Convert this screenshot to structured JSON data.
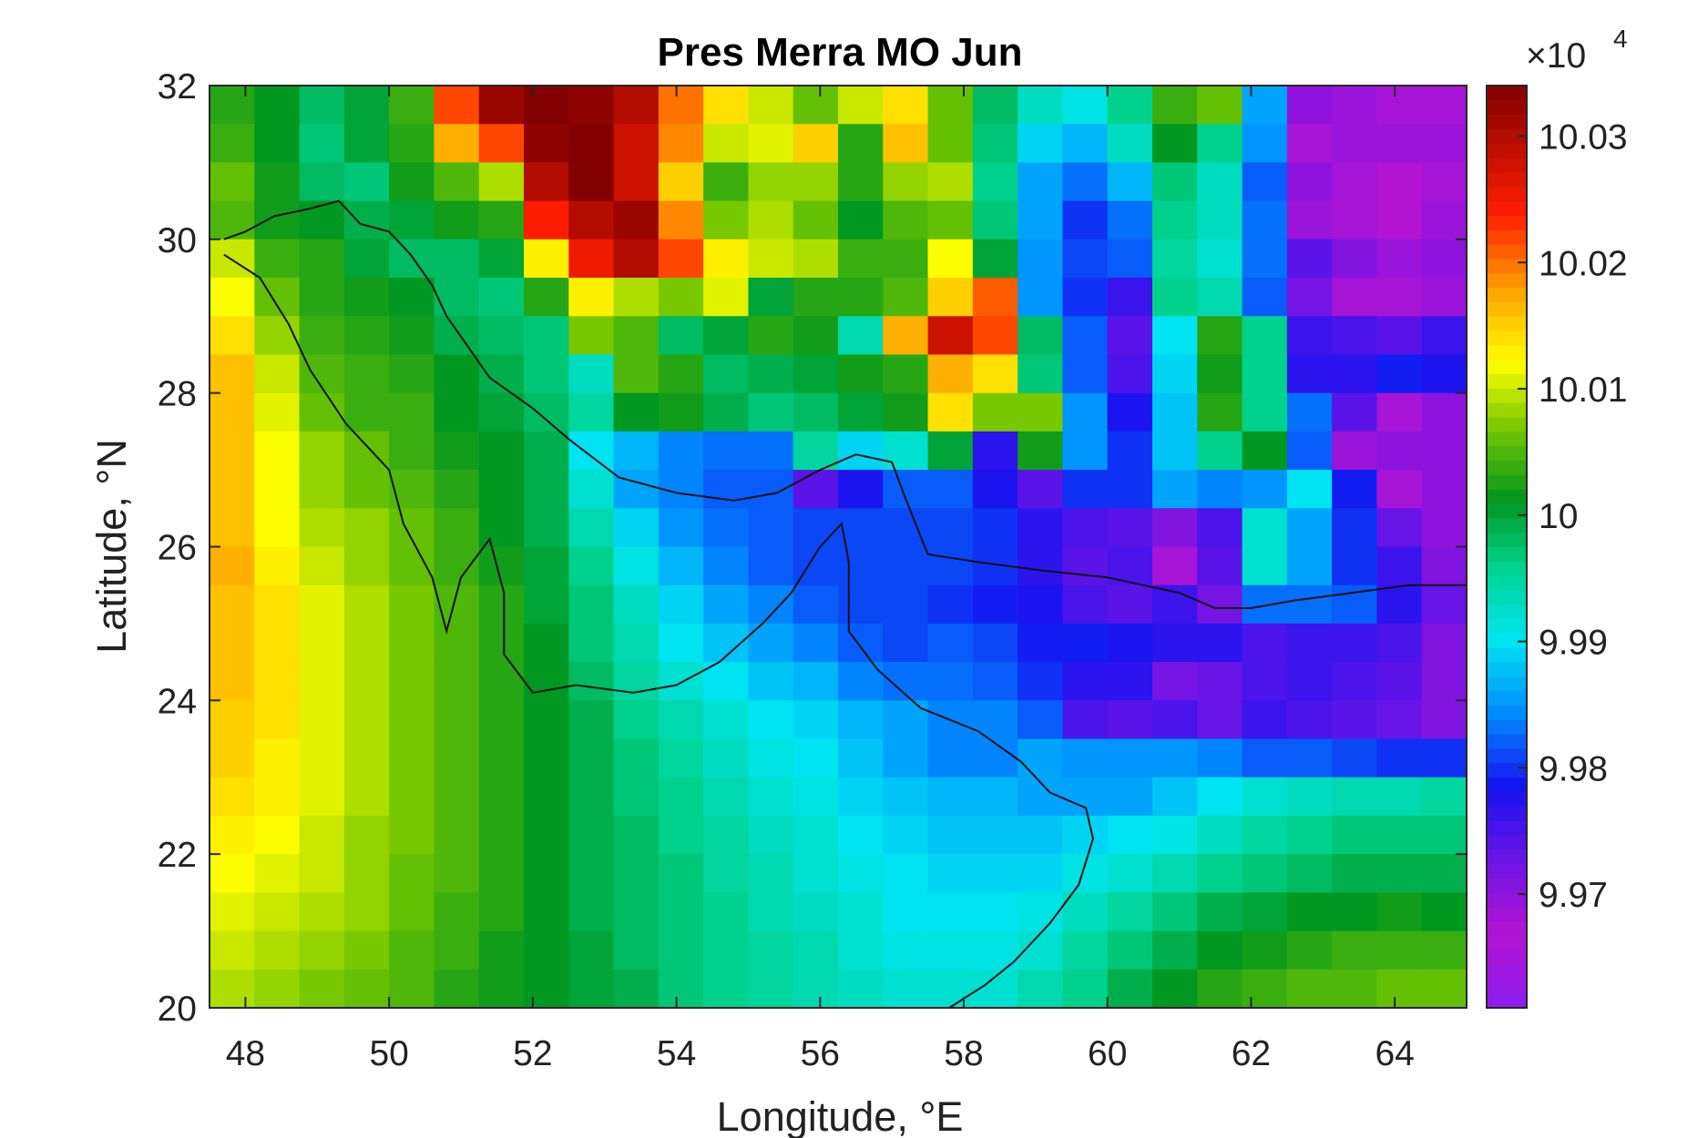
{
  "chart_data": {
    "type": "heatmap",
    "title": "Pres Merra MO Jun",
    "xlabel": "Longitude, °E",
    "ylabel": "Latitude, °N",
    "xlim": [
      47.5,
      65
    ],
    "ylim": [
      20,
      32
    ],
    "x_ticks": [
      "48",
      "50",
      "52",
      "54",
      "56",
      "58",
      "60",
      "62",
      "64"
    ],
    "y_ticks": [
      "20",
      "22",
      "24",
      "26",
      "28",
      "30",
      "32"
    ],
    "colorbar": {
      "range": [
        9.961,
        10.034
      ],
      "multiplier": "×10",
      "multiplier_exponent": "4",
      "ticks": [
        "9.97",
        "9.98",
        "9.99",
        "10",
        "10.01",
        "10.02",
        "10.03"
      ],
      "colormap": "jet-like (purple–blue–cyan–green–yellow–red–dark red)"
    },
    "grid": {
      "lon_start": 47.5,
      "lon_step": 0.625,
      "lat_start": 20,
      "lat_step": 0.5,
      "n_lon": 28,
      "n_lat": 24,
      "values_x1e4_row_order": "north to south, west to east",
      "rows": [
        [
          10.003,
          10.001,
          9.998,
          10.0,
          10.004,
          10.022,
          10.032,
          10.034,
          10.033,
          10.03,
          10.02,
          10.014,
          10.01,
          10.006,
          10.01,
          10.014,
          10.006,
          9.998,
          9.993,
          9.991,
          9.996,
          10.004,
          10.006,
          9.986,
          9.97,
          9.969,
          9.968,
          9.968
        ],
        [
          10.004,
          10.001,
          9.997,
          10.0,
          10.003,
          10.017,
          10.022,
          10.033,
          10.034,
          10.028,
          10.019,
          10.01,
          10.011,
          10.015,
          10.003,
          10.016,
          10.006,
          9.997,
          9.989,
          9.987,
          9.993,
          10.001,
          9.996,
          9.985,
          9.968,
          9.969,
          9.969,
          9.969
        ],
        [
          10.006,
          10.002,
          9.998,
          9.997,
          10.002,
          10.005,
          10.009,
          10.03,
          10.034,
          10.028,
          10.015,
          10.004,
          10.008,
          10.008,
          10.003,
          10.008,
          10.009,
          9.996,
          9.986,
          9.983,
          9.987,
          9.997,
          9.993,
          9.982,
          9.97,
          9.968,
          9.967,
          9.968
        ],
        [
          10.005,
          10.002,
          10.001,
          9.999,
          10.0,
          10.002,
          10.003,
          10.024,
          10.03,
          10.032,
          10.019,
          10.007,
          10.009,
          10.006,
          10.001,
          10.005,
          10.006,
          9.997,
          9.986,
          9.98,
          9.983,
          9.996,
          9.993,
          9.983,
          9.969,
          9.968,
          9.967,
          9.969
        ],
        [
          10.01,
          10.004,
          10.003,
          10.0,
          9.998,
          9.998,
          10.0,
          10.013,
          10.025,
          10.03,
          10.022,
          10.013,
          10.01,
          10.009,
          10.004,
          10.004,
          10.012,
          10.0,
          9.985,
          9.981,
          9.982,
          9.995,
          9.992,
          9.983,
          9.974,
          9.971,
          9.969,
          9.97
        ],
        [
          10.012,
          10.006,
          10.003,
          10.002,
          10.001,
          9.998,
          9.997,
          10.003,
          10.013,
          10.009,
          10.007,
          10.011,
          10.0,
          10.003,
          10.003,
          10.005,
          10.015,
          10.021,
          9.985,
          9.98,
          9.976,
          9.996,
          9.994,
          9.982,
          9.972,
          9.968,
          9.968,
          9.969
        ],
        [
          10.014,
          10.008,
          10.004,
          10.003,
          10.002,
          9.999,
          9.998,
          9.997,
          10.007,
          10.005,
          9.998,
          10.0,
          10.003,
          10.002,
          9.994,
          10.017,
          10.028,
          10.022,
          9.998,
          9.982,
          9.974,
          9.99,
          10.003,
          9.996,
          9.976,
          9.975,
          9.974,
          9.976
        ],
        [
          10.016,
          10.01,
          10.005,
          10.004,
          10.003,
          10.001,
          9.999,
          9.997,
          9.993,
          10.005,
          10.003,
          9.998,
          9.999,
          10.0,
          10.002,
          10.003,
          10.017,
          10.014,
          9.997,
          9.982,
          9.975,
          9.989,
          10.002,
          9.996,
          9.977,
          9.977,
          9.979,
          9.978
        ],
        [
          10.016,
          10.011,
          10.006,
          10.004,
          10.004,
          10.001,
          10.0,
          9.998,
          9.995,
          10.001,
          10.002,
          9.999,
          9.997,
          9.998,
          10.0,
          10.002,
          10.014,
          10.007,
          10.007,
          9.985,
          9.978,
          9.988,
          10.003,
          9.996,
          9.983,
          9.974,
          9.968,
          9.97
        ],
        [
          10.016,
          10.012,
          10.008,
          10.006,
          10.004,
          10.002,
          10.001,
          9.999,
          9.99,
          9.987,
          9.984,
          9.983,
          9.983,
          9.995,
          9.989,
          9.992,
          10.0,
          9.977,
          10.002,
          9.985,
          9.98,
          9.988,
          9.996,
          10.001,
          9.982,
          9.969,
          9.97,
          9.97
        ],
        [
          10.016,
          10.012,
          10.008,
          10.006,
          10.005,
          10.003,
          10.001,
          9.999,
          9.992,
          9.986,
          9.984,
          9.982,
          9.982,
          9.974,
          9.978,
          9.982,
          9.982,
          9.978,
          9.974,
          9.98,
          9.98,
          9.986,
          9.984,
          9.985,
          9.99,
          9.979,
          9.968,
          9.97
        ],
        [
          10.016,
          10.012,
          10.009,
          10.008,
          10.006,
          10.004,
          10.001,
          9.999,
          9.994,
          9.989,
          9.985,
          9.983,
          9.982,
          9.981,
          9.981,
          9.981,
          9.981,
          9.98,
          9.977,
          9.975,
          9.974,
          9.971,
          9.975,
          9.992,
          9.986,
          9.98,
          9.973,
          9.97
        ],
        [
          10.017,
          10.013,
          10.01,
          10.008,
          10.006,
          10.004,
          10.002,
          10.0,
          9.996,
          9.991,
          9.987,
          9.984,
          9.982,
          9.981,
          9.981,
          9.981,
          9.981,
          9.98,
          9.977,
          9.974,
          9.975,
          9.968,
          9.974,
          9.992,
          9.986,
          9.98,
          9.976,
          9.971
        ],
        [
          10.016,
          10.014,
          10.011,
          10.009,
          10.007,
          10.005,
          10.003,
          10.0,
          9.997,
          9.993,
          9.989,
          9.986,
          9.984,
          9.982,
          9.981,
          9.981,
          9.98,
          9.979,
          9.978,
          9.975,
          9.974,
          9.976,
          9.972,
          9.983,
          9.983,
          9.982,
          9.977,
          9.973
        ],
        [
          10.016,
          10.014,
          10.011,
          10.009,
          10.007,
          10.005,
          10.003,
          10.001,
          9.997,
          9.994,
          9.99,
          9.988,
          9.986,
          9.984,
          9.982,
          9.981,
          9.982,
          9.981,
          9.979,
          9.979,
          9.978,
          9.977,
          9.977,
          9.975,
          9.976,
          9.976,
          9.975,
          9.971
        ],
        [
          10.016,
          10.014,
          10.011,
          10.009,
          10.007,
          10.005,
          10.003,
          10.001,
          9.998,
          9.995,
          9.992,
          9.99,
          9.988,
          9.987,
          9.984,
          9.983,
          9.983,
          9.982,
          9.98,
          9.977,
          9.977,
          9.972,
          9.973,
          9.975,
          9.976,
          9.975,
          9.974,
          9.971
        ],
        [
          10.015,
          10.014,
          10.011,
          10.009,
          10.007,
          10.005,
          10.003,
          10.001,
          9.999,
          9.996,
          9.994,
          9.992,
          9.99,
          9.989,
          9.987,
          9.986,
          9.984,
          9.984,
          9.982,
          9.975,
          9.974,
          9.975,
          9.973,
          9.976,
          9.975,
          9.974,
          9.973,
          9.971
        ],
        [
          10.015,
          10.013,
          10.011,
          10.009,
          10.007,
          10.005,
          10.003,
          10.001,
          9.999,
          9.997,
          9.995,
          9.993,
          9.991,
          9.99,
          9.988,
          9.986,
          9.984,
          9.984,
          9.986,
          9.985,
          9.985,
          9.985,
          9.984,
          9.982,
          9.982,
          9.981,
          9.98,
          9.98
        ],
        [
          10.014,
          10.013,
          10.011,
          10.009,
          10.007,
          10.005,
          10.003,
          10.001,
          9.999,
          9.997,
          9.996,
          9.994,
          9.992,
          9.991,
          9.989,
          9.988,
          9.987,
          9.987,
          9.986,
          9.986,
          9.986,
          9.988,
          9.99,
          9.992,
          9.993,
          9.994,
          9.994,
          9.995
        ],
        [
          10.013,
          10.012,
          10.01,
          10.008,
          10.007,
          10.005,
          10.003,
          10.001,
          9.999,
          9.998,
          9.996,
          9.995,
          9.993,
          9.992,
          9.99,
          9.989,
          9.988,
          9.988,
          9.988,
          9.989,
          9.99,
          9.991,
          9.993,
          9.995,
          9.996,
          9.997,
          9.997,
          9.997
        ],
        [
          10.012,
          10.011,
          10.01,
          10.008,
          10.006,
          10.005,
          10.003,
          10.001,
          9.999,
          9.998,
          9.997,
          9.995,
          9.994,
          9.992,
          9.991,
          9.99,
          9.989,
          9.989,
          9.989,
          9.991,
          9.992,
          9.994,
          9.996,
          9.997,
          9.998,
          9.999,
          9.999,
          9.999
        ],
        [
          10.011,
          10.01,
          10.009,
          10.008,
          10.006,
          10.004,
          10.003,
          10.001,
          9.999,
          9.998,
          9.997,
          9.996,
          9.994,
          9.993,
          9.992,
          9.99,
          9.99,
          9.99,
          9.991,
          9.993,
          9.995,
          9.997,
          9.999,
          10.0,
          10.001,
          10.001,
          10.002,
          10.001
        ],
        [
          10.01,
          10.009,
          10.008,
          10.007,
          10.005,
          10.004,
          10.002,
          10.001,
          10.0,
          9.998,
          9.997,
          9.996,
          9.995,
          9.994,
          9.992,
          9.991,
          9.991,
          9.991,
          9.992,
          9.995,
          9.997,
          9.999,
          10.001,
          10.002,
          10.003,
          10.004,
          10.004,
          10.004
        ],
        [
          10.009,
          10.008,
          10.007,
          10.006,
          10.005,
          10.003,
          10.002,
          10.001,
          10.0,
          9.999,
          9.997,
          9.996,
          9.995,
          9.994,
          9.993,
          9.992,
          9.992,
          9.992,
          9.994,
          9.996,
          9.999,
          10.001,
          10.003,
          10.004,
          10.005,
          10.005,
          10.006,
          10.006
        ]
      ]
    },
    "coastline_lonlat": [
      [
        47.7,
        30.0
      ],
      [
        48.0,
        30.1
      ],
      [
        48.4,
        30.3
      ],
      [
        48.9,
        30.4
      ],
      [
        49.3,
        30.5
      ],
      [
        49.6,
        30.2
      ],
      [
        50.0,
        30.1
      ],
      [
        50.3,
        29.8
      ],
      [
        50.6,
        29.4
      ],
      [
        50.8,
        29.0
      ],
      [
        51.1,
        28.6
      ],
      [
        51.4,
        28.2
      ],
      [
        52.0,
        27.8
      ],
      [
        52.5,
        27.4
      ],
      [
        53.2,
        26.9
      ],
      [
        54.0,
        26.7
      ],
      [
        54.8,
        26.6
      ],
      [
        55.4,
        26.7
      ],
      [
        56.0,
        27.0
      ],
      [
        56.5,
        27.2
      ],
      [
        57.0,
        27.1
      ],
      [
        57.2,
        26.6
      ],
      [
        57.5,
        25.9
      ],
      [
        58.2,
        25.8
      ],
      [
        59.0,
        25.7
      ],
      [
        60.0,
        25.6
      ],
      [
        61.0,
        25.4
      ],
      [
        61.5,
        25.2
      ],
      [
        62.0,
        25.2
      ],
      [
        62.6,
        25.3
      ],
      [
        63.4,
        25.4
      ],
      [
        64.2,
        25.5
      ],
      [
        65.0,
        25.5
      ]
    ],
    "coastline_lonlat_south": [
      [
        47.7,
        29.8
      ],
      [
        48.2,
        29.5
      ],
      [
        48.6,
        28.9
      ],
      [
        48.9,
        28.3
      ],
      [
        49.4,
        27.6
      ],
      [
        50.0,
        27.0
      ],
      [
        50.2,
        26.3
      ],
      [
        50.6,
        25.6
      ],
      [
        50.8,
        24.9
      ],
      [
        51.0,
        25.6
      ],
      [
        51.4,
        26.1
      ],
      [
        51.6,
        25.4
      ],
      [
        51.6,
        24.6
      ],
      [
        52.0,
        24.1
      ],
      [
        52.6,
        24.2
      ],
      [
        53.4,
        24.1
      ],
      [
        54.0,
        24.2
      ],
      [
        54.6,
        24.5
      ],
      [
        55.2,
        25.0
      ],
      [
        55.6,
        25.4
      ],
      [
        56.0,
        26.0
      ],
      [
        56.3,
        26.3
      ],
      [
        56.4,
        25.8
      ],
      [
        56.4,
        24.9
      ],
      [
        56.8,
        24.4
      ],
      [
        57.4,
        23.9
      ],
      [
        58.2,
        23.6
      ],
      [
        58.8,
        23.2
      ],
      [
        59.2,
        22.8
      ],
      [
        59.7,
        22.6
      ],
      [
        59.8,
        22.2
      ],
      [
        59.6,
        21.6
      ],
      [
        59.2,
        21.1
      ],
      [
        58.7,
        20.6
      ],
      [
        58.3,
        20.3
      ],
      [
        57.8,
        20.0
      ]
    ]
  }
}
